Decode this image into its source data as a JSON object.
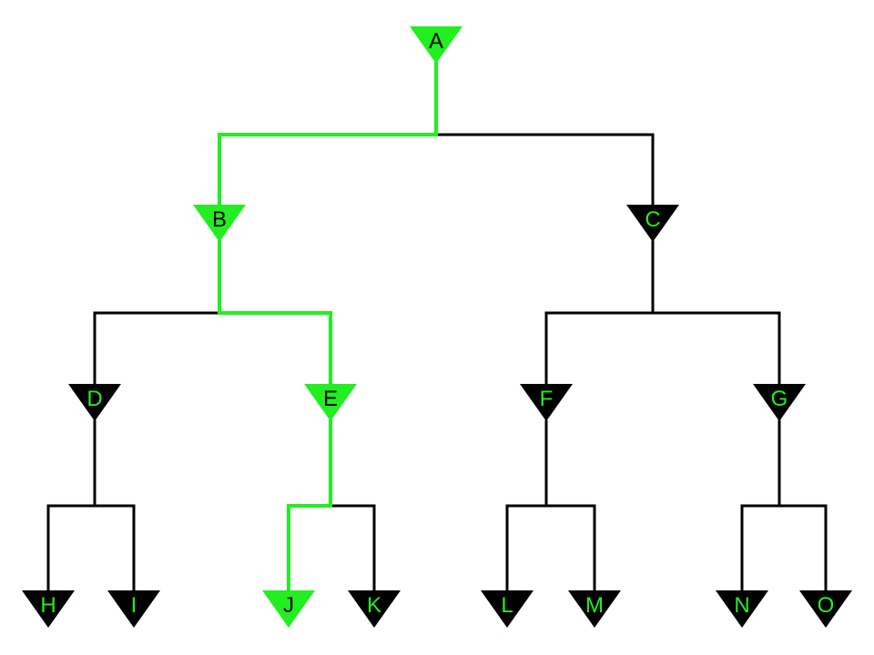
{
  "colors": {
    "highlight": "#22ee22",
    "default": "#000000",
    "background": "#ffffff"
  },
  "highlighted_path": [
    "A",
    "B",
    "E",
    "J"
  ],
  "nodes": [
    {
      "id": "A",
      "label": "A"
    },
    {
      "id": "B",
      "label": "B"
    },
    {
      "id": "C",
      "label": "C"
    },
    {
      "id": "D",
      "label": "D"
    },
    {
      "id": "E",
      "label": "E"
    },
    {
      "id": "F",
      "label": "F"
    },
    {
      "id": "G",
      "label": "G"
    },
    {
      "id": "H",
      "label": "H"
    },
    {
      "id": "I",
      "label": "I"
    },
    {
      "id": "J",
      "label": "J"
    },
    {
      "id": "K",
      "label": "K"
    },
    {
      "id": "L",
      "label": "L"
    },
    {
      "id": "M",
      "label": "M"
    },
    {
      "id": "N",
      "label": "N"
    },
    {
      "id": "O",
      "label": "O"
    }
  ],
  "edges": [
    [
      "A",
      "B"
    ],
    [
      "A",
      "C"
    ],
    [
      "B",
      "D"
    ],
    [
      "B",
      "E"
    ],
    [
      "C",
      "F"
    ],
    [
      "C",
      "G"
    ],
    [
      "D",
      "H"
    ],
    [
      "D",
      "I"
    ],
    [
      "E",
      "J"
    ],
    [
      "E",
      "K"
    ],
    [
      "F",
      "L"
    ],
    [
      "F",
      "M"
    ],
    [
      "G",
      "N"
    ],
    [
      "G",
      "O"
    ]
  ]
}
